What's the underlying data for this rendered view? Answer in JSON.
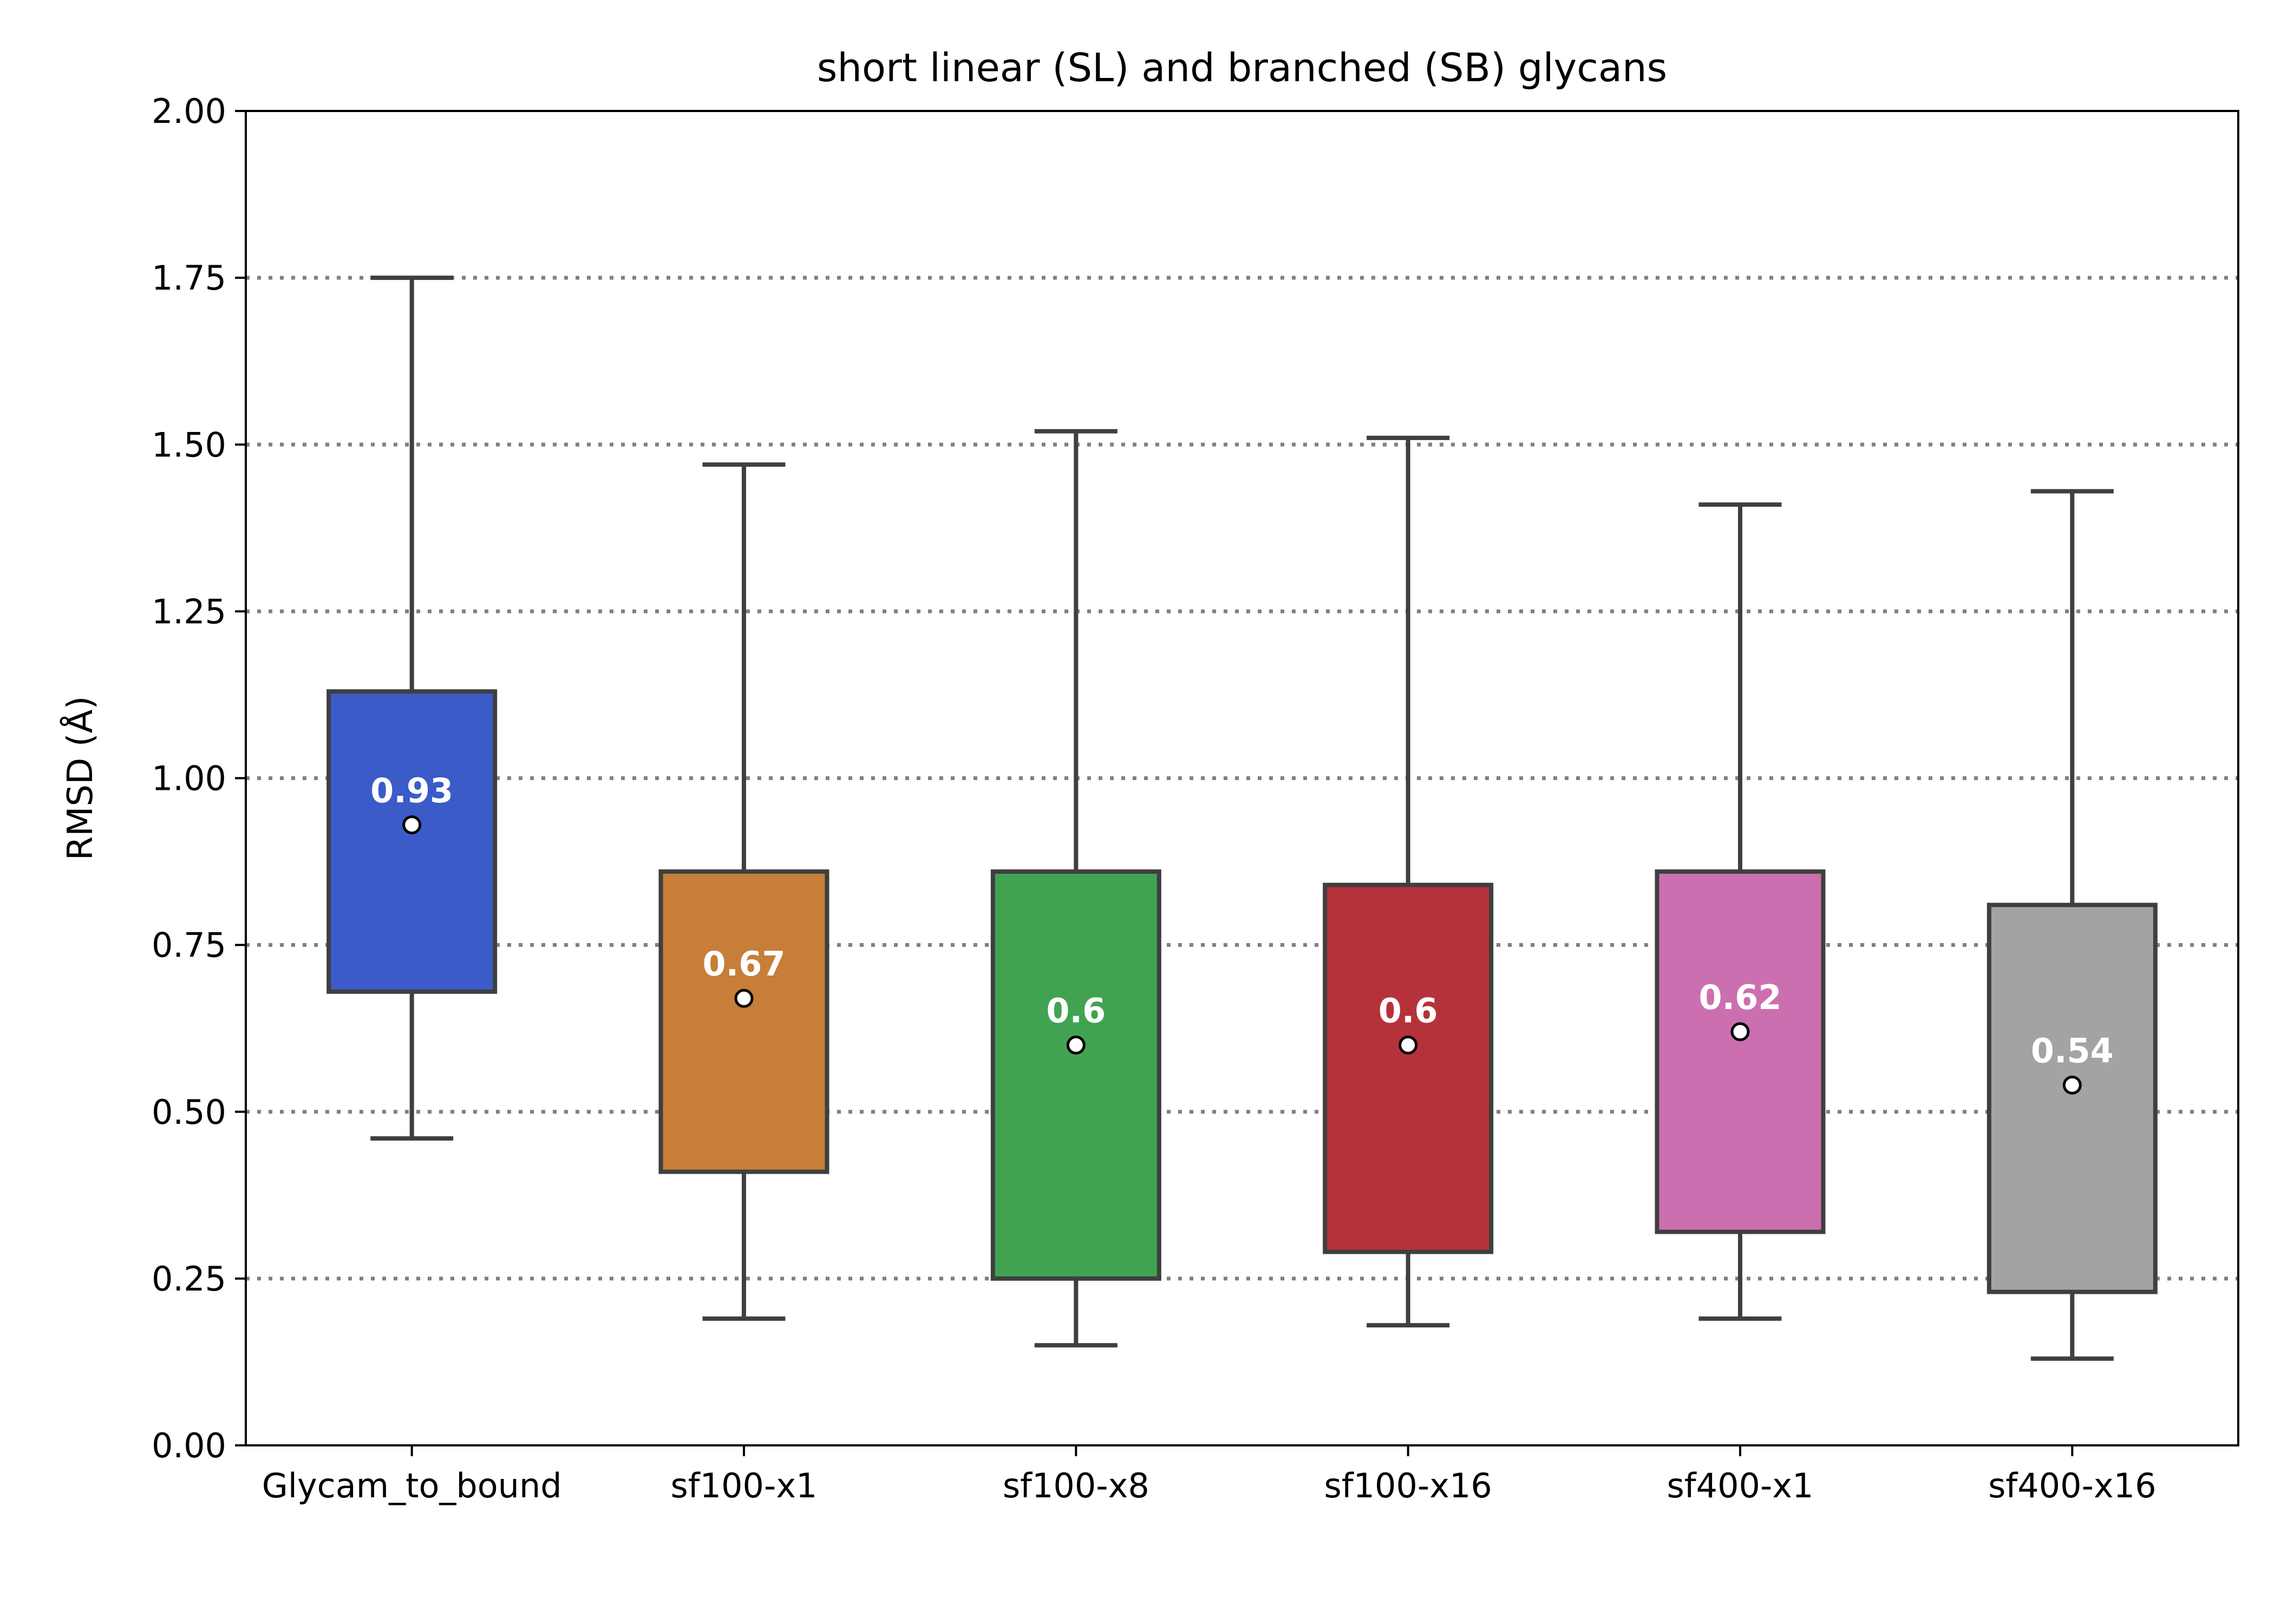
{
  "chart_data": {
    "type": "box",
    "title": "short linear (SL) and branched (SB) glycans",
    "xlabel": "",
    "ylabel": "RMSD (Å)",
    "ylim": [
      0,
      2
    ],
    "yticks": [
      "0.00",
      "0.25",
      "0.50",
      "0.75",
      "1.00",
      "1.25",
      "1.50",
      "1.75",
      "2.00"
    ],
    "grid": "horizontal dotted",
    "categories": [
      "Glycam_to_bound",
      "sf100-x1",
      "sf100-x8",
      "sf100-x16",
      "sf400-x1",
      "sf400-x16"
    ],
    "boxes": [
      {
        "category": "Glycam_to_bound",
        "whisker_low": 0.46,
        "q1": 0.68,
        "q3": 1.13,
        "whisker_high": 1.75,
        "mean": 0.93,
        "mean_label": "0.93",
        "color": "#3b5bc9"
      },
      {
        "category": "sf100-x1",
        "whisker_low": 0.19,
        "q1": 0.41,
        "q3": 0.86,
        "whisker_high": 1.47,
        "mean": 0.67,
        "mean_label": "0.67",
        "color": "#c67e38"
      },
      {
        "category": "sf100-x8",
        "whisker_low": 0.15,
        "q1": 0.25,
        "q3": 0.86,
        "whisker_high": 1.52,
        "mean": 0.6,
        "mean_label": "0.6",
        "color": "#41a352"
      },
      {
        "category": "sf100-x16",
        "whisker_low": 0.18,
        "q1": 0.29,
        "q3": 0.84,
        "whisker_high": 1.51,
        "mean": 0.6,
        "mean_label": "0.6",
        "color": "#b6323a"
      },
      {
        "category": "sf400-x1",
        "whisker_low": 0.19,
        "q1": 0.32,
        "q3": 0.86,
        "whisker_high": 1.41,
        "mean": 0.62,
        "mean_label": "0.62",
        "color": "#cc6fb0"
      },
      {
        "category": "sf400-x16",
        "whisker_low": 0.13,
        "q1": 0.23,
        "q3": 0.81,
        "whisker_high": 1.43,
        "mean": 0.54,
        "mean_label": "0.54",
        "color": "#a3a3a3"
      }
    ]
  }
}
